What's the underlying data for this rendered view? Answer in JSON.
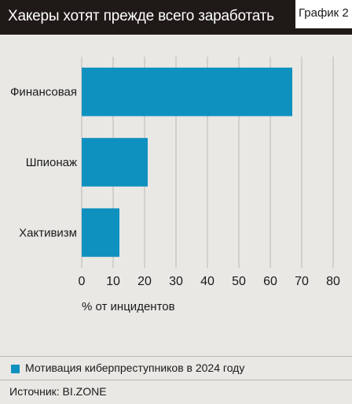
{
  "header": {
    "title": "Хакеры хотят прежде всего заработать",
    "badge": "График 2"
  },
  "chart_data": {
    "type": "bar",
    "orientation": "horizontal",
    "categories": [
      "Финансовая",
      "Шпионаж",
      "Хактивизм"
    ],
    "series": [
      {
        "name": "Мотивация киберпреступников в 2024 году",
        "values": [
          67,
          21,
          12
        ]
      }
    ],
    "xlabel": "% от инцидентов",
    "xlim": [
      0,
      80
    ],
    "xticks": [
      0,
      10,
      20,
      30,
      40,
      50,
      60,
      70,
      80
    ],
    "grid": true,
    "legend_position": "bottom"
  },
  "legend": {
    "label": "Мотивация киберпреступников в 2024 году"
  },
  "source": {
    "label": "Источник: BI.ZONE"
  },
  "colors": {
    "bar": "#0f91bf",
    "grid": "#b9b8b4",
    "background": "#e9e8e4",
    "header": "#1f1a17"
  }
}
